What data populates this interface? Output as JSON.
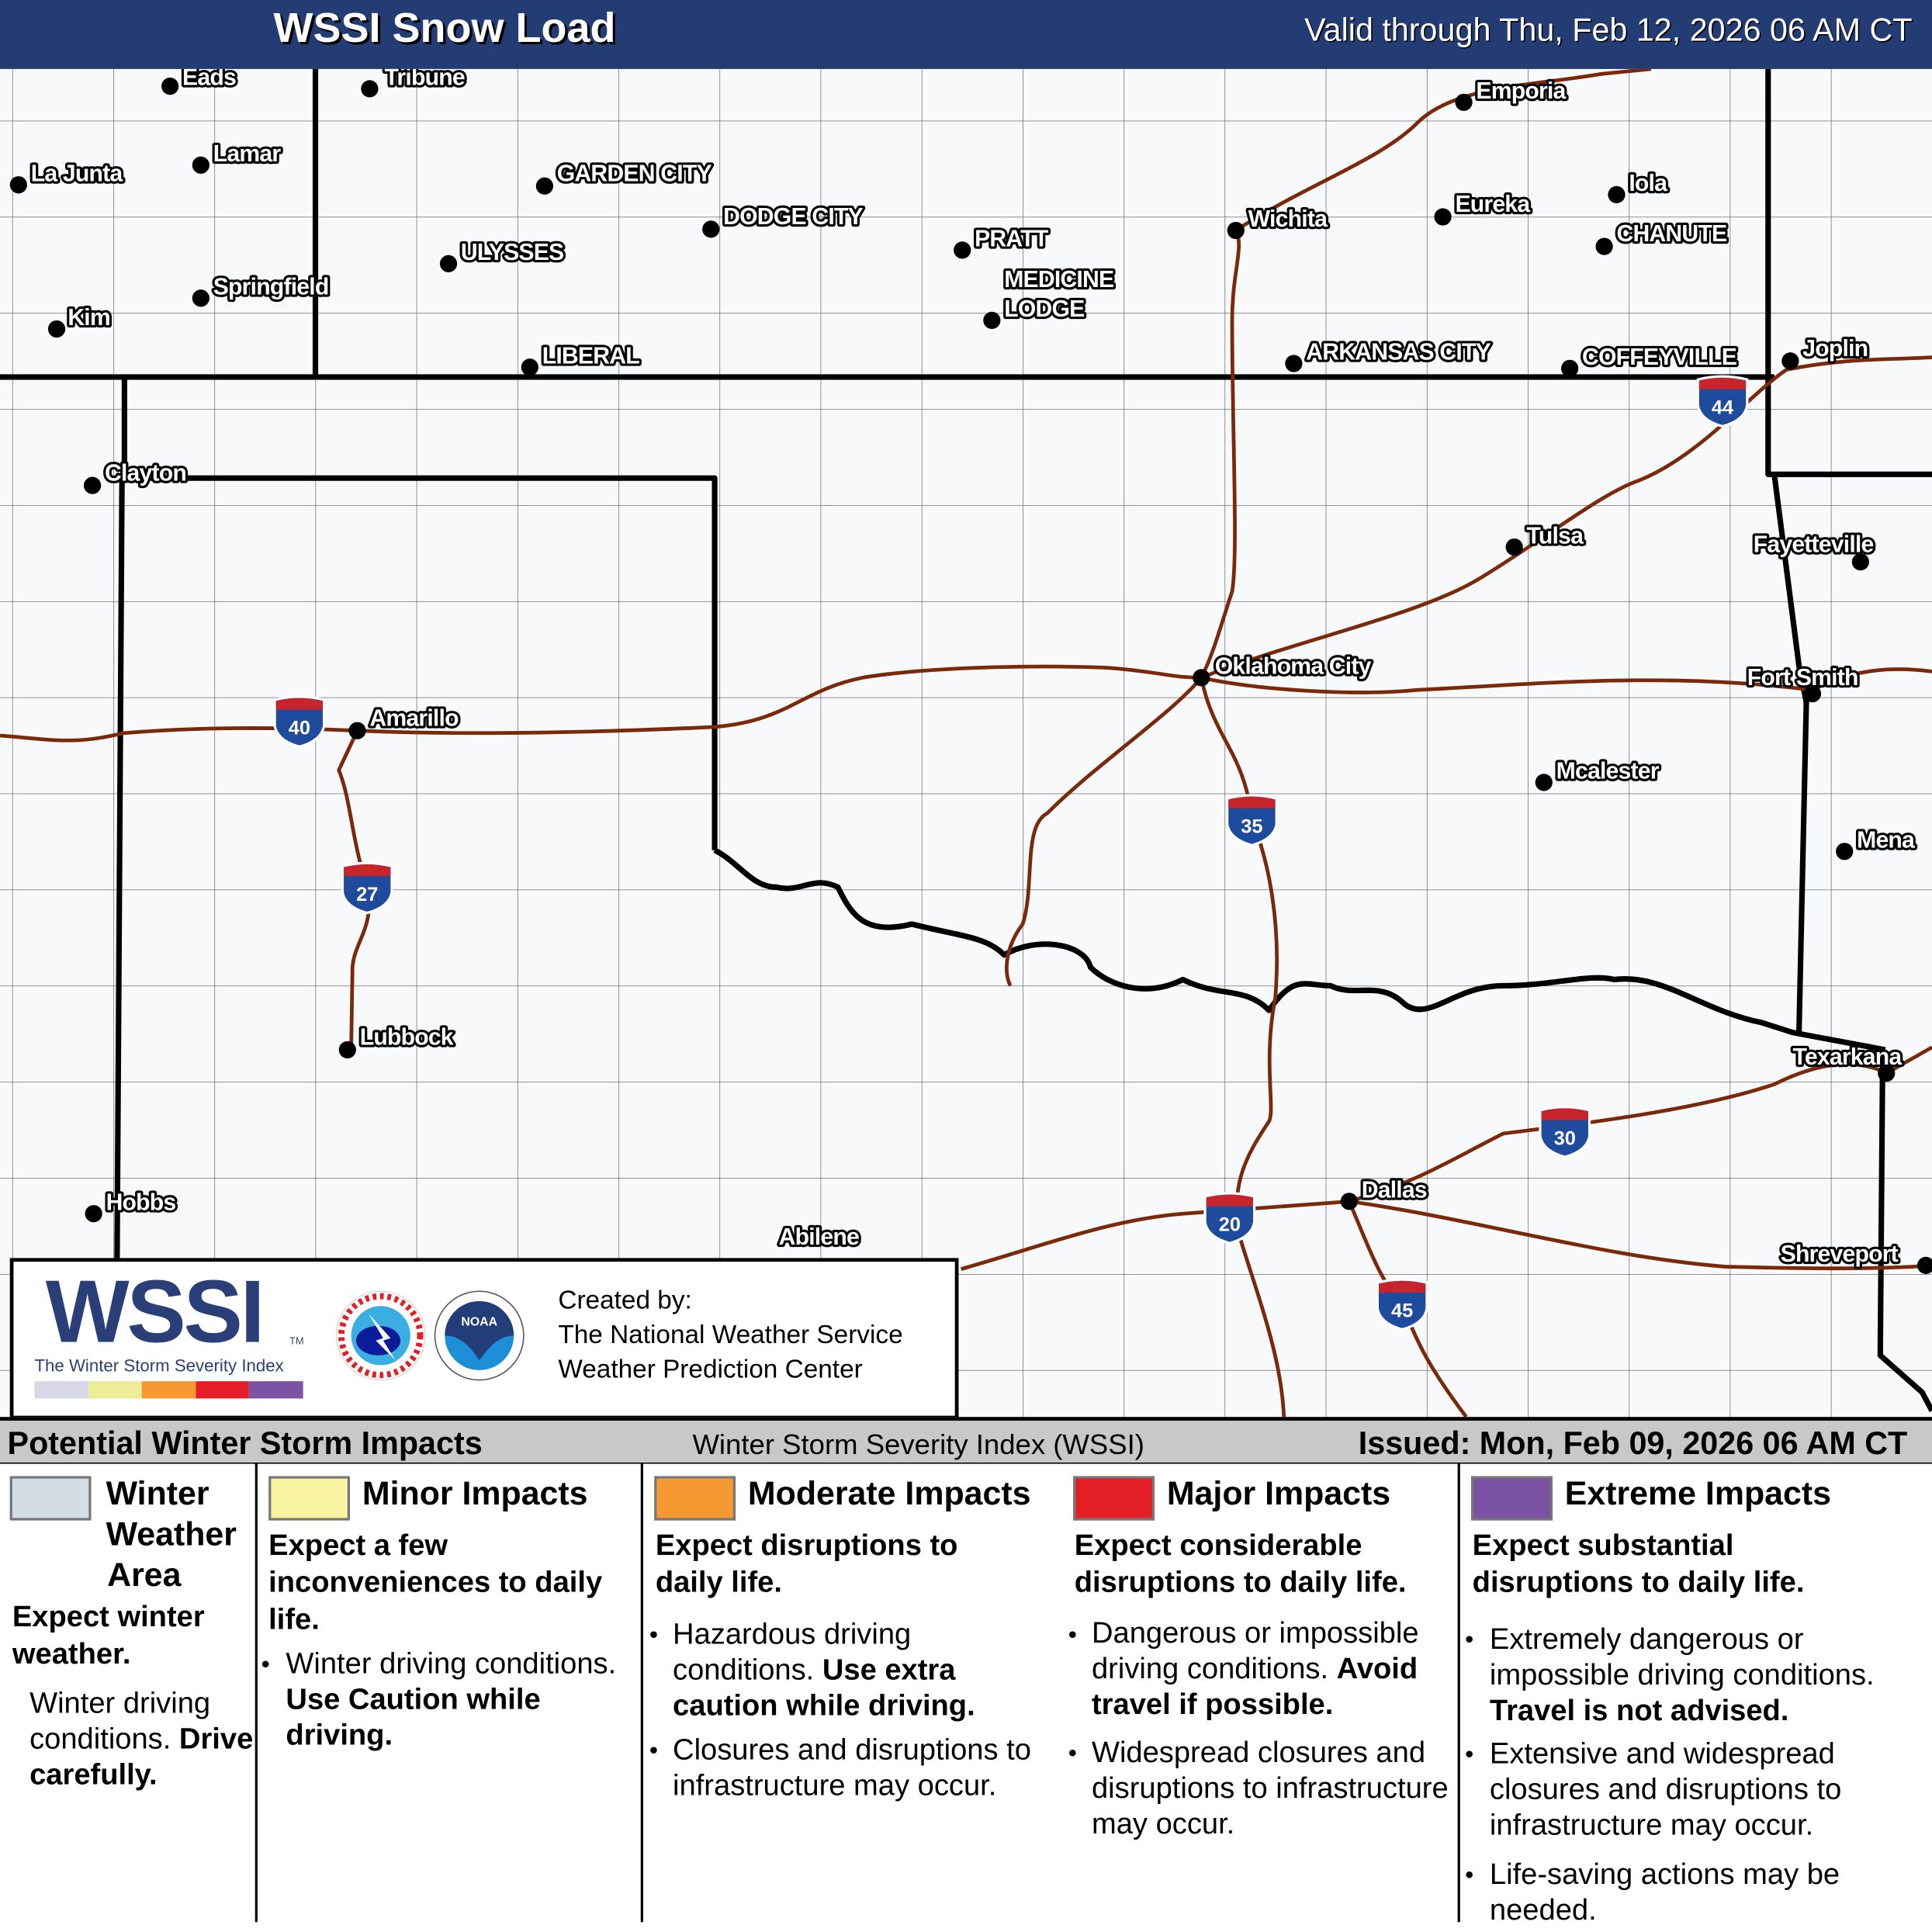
{
  "header": {
    "title": "WSSI Snow Load",
    "valid": "Valid through Thu, Feb 12, 2026 06 AM CT"
  },
  "colors": {
    "header_bg": "#243c74",
    "highway": "#7a2a0a",
    "winter_weather_area": "#d3dde6",
    "minor": "#f7f3a0",
    "moderate": "#f59a33",
    "major": "#e41e26",
    "extreme": "#7b52a4"
  },
  "cities": [
    {
      "name": "Eads"
    },
    {
      "name": "Tribune"
    },
    {
      "name": "La Junta"
    },
    {
      "name": "Lamar"
    },
    {
      "name": "Springfield"
    },
    {
      "name": "Kim"
    },
    {
      "name": "GARDEN CITY"
    },
    {
      "name": "ULYSSES"
    },
    {
      "name": "DODGE CITY"
    },
    {
      "name": "LIBERAL"
    },
    {
      "name": "PRATT"
    },
    {
      "name": "MEDICINE"
    },
    {
      "name": "LODGE"
    },
    {
      "name": "Wichita"
    },
    {
      "name": "Emporia"
    },
    {
      "name": "Eureka"
    },
    {
      "name": "Iola"
    },
    {
      "name": "CHANUTE"
    },
    {
      "name": "ARKANSAS CITY"
    },
    {
      "name": "COFFEYVILLE"
    },
    {
      "name": "Joplin"
    },
    {
      "name": "Clayton"
    },
    {
      "name": "Tulsa"
    },
    {
      "name": "Fayetteville"
    },
    {
      "name": "Oklahoma City"
    },
    {
      "name": "Fort Smith"
    },
    {
      "name": "Amarillo"
    },
    {
      "name": "Mcalester"
    },
    {
      "name": "Mena"
    },
    {
      "name": "Lubbock"
    },
    {
      "name": "Texarkana"
    },
    {
      "name": "Hobbs"
    },
    {
      "name": "Dallas"
    },
    {
      "name": "Abilene"
    },
    {
      "name": "Shreveport"
    }
  ],
  "interstates": [
    "40",
    "27",
    "35",
    "44",
    "30",
    "20",
    "45"
  ],
  "logo": {
    "wssi": "WSSI",
    "tm": "TM",
    "subtitle": "The Winter Storm Severity Index",
    "credit_1": "Created by:",
    "credit_2": "The National Weather Service",
    "credit_3": "Weather Prediction Center",
    "nws_text": "NATIONAL WEATHER SERVICE",
    "noaa_text": "NOAA"
  },
  "legend_bar": {
    "left": "Potential Winter Storm Impacts",
    "center": "Winter Storm Severity Index (WSSI)",
    "right": "Issued: Mon, Feb 09, 2026 06 AM CT"
  },
  "legend": {
    "wwa": {
      "title_1": "Winter",
      "title_2": "Weather",
      "title_3": "Area",
      "expect": "Expect winter weather.",
      "b1": "Winter driving conditions.",
      "b1_bold": "Drive carefully."
    },
    "minor": {
      "title": "Minor Impacts",
      "expect": "Expect a few inconveniences to daily life.",
      "b1": "Winter driving conditions. ",
      "b1_bold": "Use Caution while driving."
    },
    "moderate": {
      "title": "Moderate Impacts",
      "expect": "Expect disruptions to daily life.",
      "b1": "Hazardous driving conditions. ",
      "b1_bold": "Use extra caution while driving.",
      "b2": "Closures and disruptions to infrastructure may occur."
    },
    "major": {
      "title": "Major Impacts",
      "expect": "Expect considerable disruptions to daily life.",
      "b1": "Dangerous or impossible driving conditions. ",
      "b1_bold": "Avoid travel if possible.",
      "b2": "Widespread closures and disruptions to infrastructure may occur."
    },
    "extreme": {
      "title": "Extreme Impacts",
      "expect": "Expect substantial disruptions to daily life.",
      "b1": "Extremely dangerous or impossible driving conditions. ",
      "b1_bold": "Travel is not advised.",
      "b2": "Extensive and widespread closures and disruptions to infrastructure may occur.",
      "b3": "Life-saving actions may be needed."
    }
  }
}
